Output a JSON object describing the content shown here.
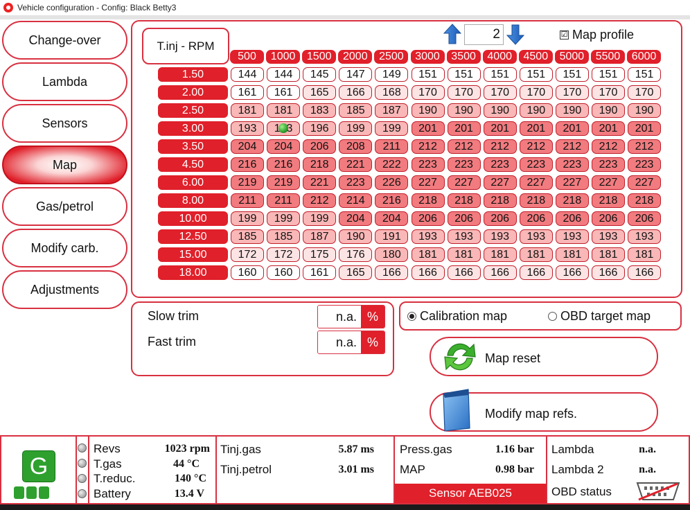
{
  "window": {
    "title": "Vehicle configuration - Config: Black Betty3"
  },
  "nav": [
    {
      "label": "Change-over",
      "active": false
    },
    {
      "label": "Lambda",
      "active": false
    },
    {
      "label": "Sensors",
      "active": false
    },
    {
      "label": "Map",
      "active": true
    },
    {
      "label": "Gas/petrol",
      "active": false
    },
    {
      "label": "Modify carb.",
      "active": false
    },
    {
      "label": "Adjustments",
      "active": false
    }
  ],
  "map": {
    "corner_label": "T.inj - RPM",
    "profile_value": "2",
    "map_profile_label": "Map profile",
    "map_profile_checked": "☑",
    "rpm": [
      "500",
      "1000",
      "1500",
      "2000",
      "2500",
      "3000",
      "3500",
      "4000",
      "4500",
      "5000",
      "5500",
      "6000"
    ],
    "tinj": [
      "1.50",
      "2.00",
      "2.50",
      "3.00",
      "3.50",
      "4.50",
      "6.00",
      "8.00",
      "10.00",
      "12.50",
      "15.00",
      "18.00"
    ],
    "values": [
      [
        "144",
        "144",
        "145",
        "147",
        "149",
        "151",
        "151",
        "151",
        "151",
        "151",
        "151",
        "151"
      ],
      [
        "161",
        "161",
        "165",
        "166",
        "168",
        "170",
        "170",
        "170",
        "170",
        "170",
        "170",
        "170"
      ],
      [
        "181",
        "181",
        "183",
        "185",
        "187",
        "190",
        "190",
        "190",
        "190",
        "190",
        "190",
        "190"
      ],
      [
        "193",
        "193",
        "196",
        "199",
        "199",
        "201",
        "201",
        "201",
        "201",
        "201",
        "201",
        "201"
      ],
      [
        "204",
        "204",
        "206",
        "208",
        "211",
        "212",
        "212",
        "212",
        "212",
        "212",
        "212",
        "212"
      ],
      [
        "216",
        "216",
        "218",
        "221",
        "222",
        "223",
        "223",
        "223",
        "223",
        "223",
        "223",
        "223"
      ],
      [
        "219",
        "219",
        "221",
        "223",
        "226",
        "227",
        "227",
        "227",
        "227",
        "227",
        "227",
        "227"
      ],
      [
        "211",
        "211",
        "212",
        "214",
        "216",
        "218",
        "218",
        "218",
        "218",
        "218",
        "218",
        "218"
      ],
      [
        "199",
        "199",
        "199",
        "204",
        "204",
        "206",
        "206",
        "206",
        "206",
        "206",
        "206",
        "206"
      ],
      [
        "185",
        "185",
        "187",
        "190",
        "191",
        "193",
        "193",
        "193",
        "193",
        "193",
        "193",
        "193"
      ],
      [
        "172",
        "172",
        "175",
        "176",
        "180",
        "181",
        "181",
        "181",
        "181",
        "181",
        "181",
        "181"
      ],
      [
        "160",
        "160",
        "161",
        "165",
        "166",
        "166",
        "166",
        "166",
        "166",
        "166",
        "166",
        "166"
      ]
    ],
    "colors": {
      "accent": "#e0202a",
      "cell_light": "#fde4e4",
      "cell_mid": "#f9b7b7",
      "cell_dark": "#f17b7f",
      "cursor": "#2ea02e"
    }
  },
  "trim": {
    "slow_label": "Slow trim",
    "slow_value": "n.a.",
    "slow_unit": "%",
    "fast_label": "Fast trim",
    "fast_value": "n.a.",
    "fast_unit": "%"
  },
  "map_select": {
    "calibration_label": "Calibration map",
    "obd_label": "OBD target map",
    "selected": "calibration"
  },
  "actions": {
    "reset_label": "Map reset",
    "modify_label": "Modify map refs."
  },
  "status": {
    "fuel_badge": "G",
    "revs_label": "Revs",
    "revs_value": "1023 rpm",
    "tgas_label": "T.gas",
    "tgas_value": "44 °C",
    "treduc_label": "T.reduc.",
    "treduc_value": "140 °C",
    "battery_label": "Battery",
    "battery_value": "13.4 V",
    "tinj_gas_label": "Tinj.gas",
    "tinj_gas_value": "5.87 ms",
    "tinj_petrol_label": "Tinj.petrol",
    "tinj_petrol_value": "3.01 ms",
    "press_gas_label": "Press.gas",
    "press_gas_value": "1.16 bar",
    "map_label": "MAP",
    "map_value": "0.98 bar",
    "sensor_label": "Sensor AEB025",
    "lambda_label": "Lambda",
    "lambda_value": "n.a.",
    "lambda2_label": "Lambda 2",
    "lambda2_value": "n.a.",
    "obd_label": "OBD status"
  }
}
